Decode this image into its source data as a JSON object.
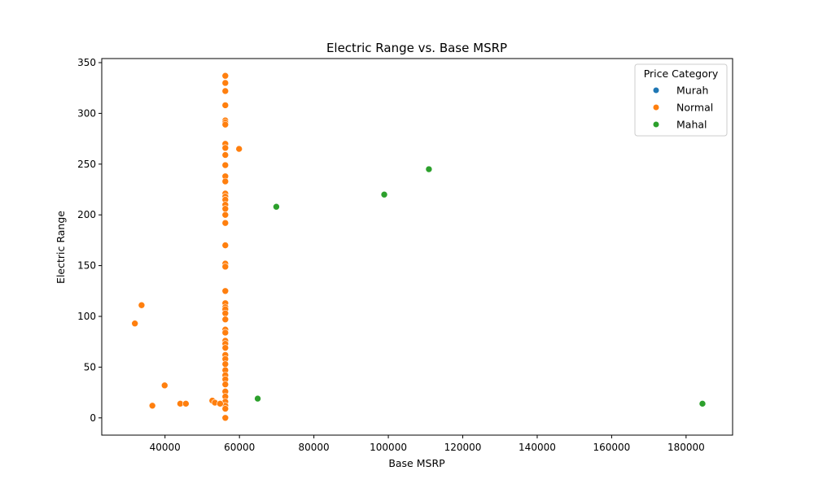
{
  "chart_data": {
    "type": "scatter",
    "title": "Electric Range vs. Base MSRP",
    "xlabel": "Base MSRP",
    "ylabel": "Electric Range",
    "xlim": [
      23000,
      192500
    ],
    "ylim": [
      -17,
      354
    ],
    "xticks": [
      40000,
      60000,
      80000,
      100000,
      120000,
      140000,
      160000,
      180000
    ],
    "yticks": [
      0,
      50,
      100,
      150,
      200,
      250,
      300,
      350
    ],
    "grid": false,
    "legend": {
      "title": "Price Category",
      "position": "top-right"
    },
    "series": [
      {
        "name": "Murah",
        "color": "#1f77b4",
        "points": []
      },
      {
        "name": "Normal",
        "color": "#ff7f0e",
        "points": [
          [
            56200,
            337
          ],
          [
            56200,
            330
          ],
          [
            56200,
            322
          ],
          [
            56200,
            308
          ],
          [
            56200,
            293
          ],
          [
            56200,
            291
          ],
          [
            56200,
            289
          ],
          [
            56200,
            270
          ],
          [
            56200,
            266
          ],
          [
            56200,
            259
          ],
          [
            56200,
            249
          ],
          [
            56200,
            238
          ],
          [
            56200,
            233
          ],
          [
            56200,
            221
          ],
          [
            56200,
            218
          ],
          [
            56200,
            215
          ],
          [
            56200,
            210
          ],
          [
            56200,
            206
          ],
          [
            56200,
            200
          ],
          [
            56200,
            192
          ],
          [
            56200,
            170
          ],
          [
            56200,
            152
          ],
          [
            56200,
            149
          ],
          [
            56200,
            125
          ],
          [
            56200,
            113
          ],
          [
            56200,
            109
          ],
          [
            56200,
            107
          ],
          [
            56200,
            103
          ],
          [
            56200,
            97
          ],
          [
            56200,
            87
          ],
          [
            56200,
            84
          ],
          [
            56200,
            76
          ],
          [
            56200,
            73
          ],
          [
            56200,
            69
          ],
          [
            56200,
            62
          ],
          [
            56200,
            58
          ],
          [
            56200,
            53
          ],
          [
            56200,
            47
          ],
          [
            56200,
            42
          ],
          [
            56200,
            38
          ],
          [
            56200,
            33
          ],
          [
            56200,
            26
          ],
          [
            56200,
            21
          ],
          [
            56200,
            16
          ],
          [
            56200,
            12
          ],
          [
            56200,
            9
          ],
          [
            56200,
            0
          ],
          [
            59900,
            265
          ],
          [
            31900,
            93
          ],
          [
            33700,
            111
          ],
          [
            39900,
            32
          ],
          [
            36600,
            12
          ],
          [
            44100,
            14
          ],
          [
            45600,
            14
          ],
          [
            52700,
            17
          ],
          [
            53400,
            15
          ],
          [
            54800,
            14
          ]
        ]
      },
      {
        "name": "Mahal",
        "color": "#2ca02c",
        "points": [
          [
            69900,
            208
          ],
          [
            98900,
            220
          ],
          [
            110900,
            245
          ],
          [
            64900,
            19
          ],
          [
            184400,
            14
          ]
        ]
      }
    ]
  }
}
